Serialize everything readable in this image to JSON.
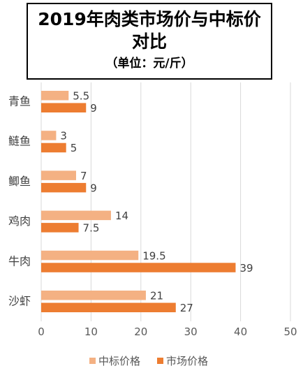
{
  "chart_data": {
    "type": "bar",
    "orientation": "horizontal",
    "title_lines": [
      "2019年肉类市场价与中标价",
      "对比"
    ],
    "subtitle": "（单位：元/斤）",
    "categories": [
      "青鱼",
      "鲢鱼",
      "鲫鱼",
      "鸡肉",
      "牛肉",
      "沙虾"
    ],
    "series": [
      {
        "name": "中标价格",
        "color": "#F4B183",
        "values": [
          5.5,
          3,
          7,
          14,
          19.5,
          21
        ]
      },
      {
        "name": "市场价格",
        "color": "#ED7D31",
        "values": [
          9,
          5,
          9,
          7.5,
          39,
          27
        ]
      }
    ],
    "xlim": [
      0,
      50
    ],
    "xticks": [
      "0",
      "10",
      "20",
      "30",
      "40",
      "50"
    ],
    "grid": true,
    "legend_position": "bottom"
  }
}
